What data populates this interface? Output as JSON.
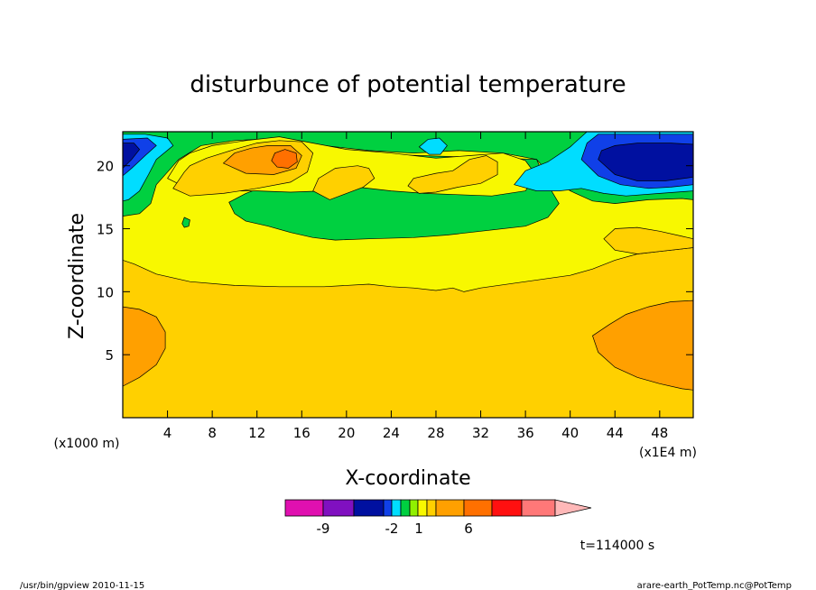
{
  "chart_data": {
    "type": "heatmap",
    "title": "disturbunce of potential temperature",
    "xlabel": "X-coordinate",
    "ylabel": "Z-coordinate",
    "x_unit": "(x1000 m)",
    "x_unit_right": "(x1E4 m)",
    "xlim": [
      0,
      51
    ],
    "ylim": [
      0,
      22.7
    ],
    "x_ticks": [
      4,
      8,
      12,
      16,
      20,
      24,
      28,
      32,
      36,
      40,
      44,
      48
    ],
    "y_ticks": [
      5,
      10,
      15,
      20
    ],
    "colorbar": {
      "colors": [
        "#e010b0",
        "#8010c0",
        "#0010a0",
        "#1040e8",
        "#00ddff",
        "#00d040",
        "#90f000",
        "#f8f800",
        "#ffd000",
        "#ffa000",
        "#ff7000",
        "#ff1010",
        "#ff7878",
        "#ffb8b8"
      ],
      "tick_labels": [
        "-9",
        "-2",
        "1",
        "6"
      ]
    },
    "regions": [
      {
        "level": "warm",
        "color": "#ffd000",
        "points": [
          [
            0,
            0
          ],
          [
            51,
            0
          ],
          [
            51,
            22.7
          ],
          [
            0,
            22.7
          ]
        ]
      },
      {
        "level": "upper-layer",
        "color": "#f8f800",
        "points": [
          [
            0,
            12.5
          ],
          [
            1,
            12.2
          ],
          [
            3,
            11.4
          ],
          [
            6,
            10.8
          ],
          [
            10,
            10.5
          ],
          [
            14,
            10.4
          ],
          [
            18,
            10.4
          ],
          [
            22,
            10.6
          ],
          [
            24,
            10.4
          ],
          [
            26,
            10.3
          ],
          [
            28,
            10.1
          ],
          [
            29.5,
            10.3
          ],
          [
            30.5,
            10.0
          ],
          [
            32,
            10.3
          ],
          [
            36,
            10.8
          ],
          [
            40,
            11.3
          ],
          [
            42,
            11.8
          ],
          [
            44,
            12.5
          ],
          [
            46,
            13.0
          ],
          [
            48,
            13.2
          ],
          [
            50,
            13.4
          ],
          [
            51,
            13.5
          ],
          [
            51,
            22.7
          ],
          [
            0,
            22.7
          ]
        ]
      },
      {
        "level": "warm-inner",
        "color": "#ffd000",
        "points": [
          [
            43,
            14.2
          ],
          [
            44,
            15.0
          ],
          [
            46,
            15.1
          ],
          [
            48,
            14.8
          ],
          [
            50,
            14.4
          ],
          [
            51,
            14.2
          ],
          [
            51,
            13.5
          ],
          [
            48,
            13.2
          ],
          [
            46,
            13.0
          ],
          [
            44,
            13.3
          ]
        ]
      },
      {
        "level": "near-zero",
        "color": "#00d040",
        "points": [
          [
            0,
            16.0
          ],
          [
            1.5,
            16.2
          ],
          [
            2.5,
            17.0
          ],
          [
            3,
            18.5
          ],
          [
            4,
            19.5
          ],
          [
            5,
            20.5
          ],
          [
            7,
            21.6
          ],
          [
            10,
            22.0
          ],
          [
            14,
            22.2
          ],
          [
            18,
            21.6
          ],
          [
            22,
            21.2
          ],
          [
            26,
            21.0
          ],
          [
            30,
            21.2
          ],
          [
            34,
            21.0
          ],
          [
            37,
            20.5
          ],
          [
            38,
            19.5
          ],
          [
            40,
            18.0
          ],
          [
            42,
            17.2
          ],
          [
            44,
            17.0
          ],
          [
            47,
            17.3
          ],
          [
            50,
            17.4
          ],
          [
            51,
            17.3
          ],
          [
            51,
            22.7
          ],
          [
            0,
            22.7
          ]
        ]
      },
      {
        "level": "near-zero-2",
        "color": "#00d040",
        "points": [
          [
            9.5,
            17.1
          ],
          [
            10,
            16.2
          ],
          [
            11,
            15.6
          ],
          [
            13,
            15.2
          ],
          [
            15,
            14.7
          ],
          [
            17,
            14.3
          ],
          [
            19,
            14.1
          ],
          [
            22,
            14.2
          ],
          [
            26,
            14.3
          ],
          [
            29,
            14.5
          ],
          [
            32,
            14.8
          ],
          [
            36,
            15.2
          ],
          [
            38,
            15.9
          ],
          [
            39,
            17.0
          ],
          [
            38,
            18.5
          ],
          [
            37,
            20.5
          ],
          [
            20,
            21.0
          ],
          [
            14,
            18.8
          ],
          [
            11,
            17.8
          ]
        ]
      },
      {
        "level": "yellow-band",
        "color": "#f8f800",
        "points": [
          [
            4,
            19.0
          ],
          [
            5,
            20.4
          ],
          [
            6,
            21.0
          ],
          [
            8,
            21.6
          ],
          [
            11,
            22.0
          ],
          [
            14,
            22.3
          ],
          [
            17,
            21.8
          ],
          [
            20,
            21.3
          ],
          [
            24,
            21.0
          ],
          [
            28,
            20.6
          ],
          [
            31,
            20.8
          ],
          [
            34,
            21.0
          ],
          [
            36,
            20.4
          ],
          [
            37,
            19.2
          ],
          [
            36,
            18.0
          ],
          [
            33,
            17.6
          ],
          [
            30,
            17.7
          ],
          [
            27,
            17.8
          ],
          [
            24,
            18.0
          ],
          [
            21,
            18.3
          ],
          [
            18,
            18.0
          ],
          [
            15,
            17.9
          ],
          [
            12,
            18.0
          ],
          [
            9,
            18.0
          ],
          [
            6,
            18.1
          ]
        ]
      },
      {
        "level": "warm-top",
        "color": "#ffd000",
        "points": [
          [
            4.5,
            18.2
          ],
          [
            5.5,
            19.5
          ],
          [
            6,
            20.0
          ],
          [
            7.5,
            20.6
          ],
          [
            10,
            21.3
          ],
          [
            12,
            21.8
          ],
          [
            14,
            22.0
          ],
          [
            16,
            21.9
          ],
          [
            17,
            21.0
          ],
          [
            16.5,
            19.5
          ],
          [
            15,
            18.7
          ],
          [
            12,
            18.2
          ],
          [
            9,
            17.8
          ],
          [
            6,
            17.6
          ]
        ]
      },
      {
        "level": "warm-top-2",
        "color": "#ffd000",
        "points": [
          [
            17,
            18.0
          ],
          [
            17.5,
            19.0
          ],
          [
            19,
            19.8
          ],
          [
            21,
            20.0
          ],
          [
            22,
            19.8
          ],
          [
            22.5,
            19.0
          ],
          [
            21.5,
            18.3
          ],
          [
            20,
            17.8
          ],
          [
            18.5,
            17.3
          ]
        ]
      },
      {
        "level": "warm-top-3",
        "color": "#ffd000",
        "points": [
          [
            25.5,
            18.4
          ],
          [
            26,
            19.0
          ],
          [
            28,
            19.4
          ],
          [
            29.5,
            19.6
          ],
          [
            31,
            20.5
          ],
          [
            32.5,
            20.8
          ],
          [
            33.5,
            20.3
          ],
          [
            33.5,
            19.3
          ],
          [
            32,
            18.6
          ],
          [
            30,
            18.3
          ],
          [
            28,
            17.9
          ],
          [
            26.5,
            17.8
          ]
        ]
      },
      {
        "level": "orange-1",
        "color": "#ffa000",
        "points": [
          [
            9,
            20.2
          ],
          [
            10,
            21.0
          ],
          [
            11.5,
            21.4
          ],
          [
            13,
            21.6
          ],
          [
            15,
            21.6
          ],
          [
            16,
            20.8
          ],
          [
            15.5,
            19.8
          ],
          [
            13.5,
            19.3
          ],
          [
            11,
            19.4
          ]
        ]
      },
      {
        "level": "orange-2",
        "color": "#ff7000",
        "points": [
          [
            13.3,
            20.4
          ],
          [
            13.6,
            21.0
          ],
          [
            14.5,
            21.3
          ],
          [
            15.5,
            21.0
          ],
          [
            15.6,
            20.3
          ],
          [
            14.8,
            19.8
          ],
          [
            13.8,
            19.9
          ]
        ]
      },
      {
        "level": "cyan-left",
        "color": "#00ddff",
        "points": [
          [
            0,
            17.2
          ],
          [
            0.5,
            17.3
          ],
          [
            1.5,
            18.0
          ],
          [
            2.3,
            19.3
          ],
          [
            3,
            20.5
          ],
          [
            4.5,
            21.6
          ],
          [
            4,
            22.2
          ],
          [
            2,
            22.5
          ],
          [
            0,
            22.5
          ]
        ]
      },
      {
        "level": "blue-left",
        "color": "#1040e8",
        "points": [
          [
            0,
            19.2
          ],
          [
            0.8,
            19.8
          ],
          [
            2,
            20.8
          ],
          [
            3,
            21.6
          ],
          [
            2.2,
            22.2
          ],
          [
            0,
            22.1
          ]
        ]
      },
      {
        "level": "navy-left",
        "color": "#0010a0",
        "points": [
          [
            0,
            19.8
          ],
          [
            0.8,
            20.5
          ],
          [
            1.5,
            21.3
          ],
          [
            1,
            21.8
          ],
          [
            0,
            21.8
          ]
        ]
      },
      {
        "level": "cyan-right",
        "color": "#00ddff",
        "points": [
          [
            35,
            18.5
          ],
          [
            37,
            18.0
          ],
          [
            39,
            18.0
          ],
          [
            41,
            18.2
          ],
          [
            43,
            17.8
          ],
          [
            45,
            17.6
          ],
          [
            48,
            17.8
          ],
          [
            51,
            18.0
          ],
          [
            51,
            22.7
          ],
          [
            41.5,
            22.7
          ],
          [
            40,
            21.5
          ],
          [
            38,
            20.3
          ],
          [
            36,
            19.6
          ]
        ]
      },
      {
        "level": "blue-right",
        "color": "#1040e8",
        "points": [
          [
            41,
            20.5
          ],
          [
            42.5,
            19.2
          ],
          [
            44.5,
            18.5
          ],
          [
            47,
            18.2
          ],
          [
            49,
            18.3
          ],
          [
            51,
            18.5
          ],
          [
            51,
            22.5
          ],
          [
            42.5,
            22.5
          ],
          [
            41.5,
            21.8
          ]
        ]
      },
      {
        "level": "navy-right",
        "color": "#0010a0",
        "points": [
          [
            42.5,
            20.5
          ],
          [
            44,
            19.3
          ],
          [
            46,
            18.8
          ],
          [
            48.5,
            18.8
          ],
          [
            51,
            19.1
          ],
          [
            51,
            21.7
          ],
          [
            49,
            21.8
          ],
          [
            46,
            21.8
          ],
          [
            44,
            21.6
          ],
          [
            42.8,
            21.2
          ]
        ]
      },
      {
        "level": "cyan-blob",
        "color": "#00ddff",
        "points": [
          [
            26.5,
            21.5
          ],
          [
            27.3,
            22.1
          ],
          [
            28.3,
            22.2
          ],
          [
            29,
            21.6
          ],
          [
            28.4,
            20.9
          ],
          [
            27.4,
            20.9
          ]
        ]
      },
      {
        "level": "green-blob",
        "color": "#00d040",
        "points": [
          [
            5.3,
            15.4
          ],
          [
            5.5,
            15.9
          ],
          [
            6,
            15.7
          ],
          [
            5.9,
            15.2
          ],
          [
            5.5,
            15.1
          ]
        ]
      },
      {
        "level": "orange-bottom-left",
        "color": "#ffa000",
        "points": [
          [
            0,
            2.5
          ],
          [
            1.5,
            3.2
          ],
          [
            3,
            4.2
          ],
          [
            3.8,
            5.5
          ],
          [
            3.8,
            6.8
          ],
          [
            3,
            8.0
          ],
          [
            1.5,
            8.6
          ],
          [
            0,
            8.8
          ]
        ]
      },
      {
        "level": "orange-bottom-right",
        "color": "#ffa000",
        "points": [
          [
            42,
            6.5
          ],
          [
            42.5,
            5.2
          ],
          [
            44,
            4.0
          ],
          [
            46,
            3.2
          ],
          [
            48,
            2.7
          ],
          [
            50,
            2.3
          ],
          [
            51,
            2.2
          ],
          [
            51,
            9.3
          ],
          [
            49,
            9.2
          ],
          [
            47,
            8.8
          ],
          [
            45,
            8.2
          ],
          [
            43.5,
            7.4
          ]
        ]
      }
    ]
  },
  "time_label": "t=114000 s",
  "footer_left": "/usr/bin/gpview  2010-11-15",
  "footer_right": "arare-earth_PotTemp.nc@PotTemp"
}
